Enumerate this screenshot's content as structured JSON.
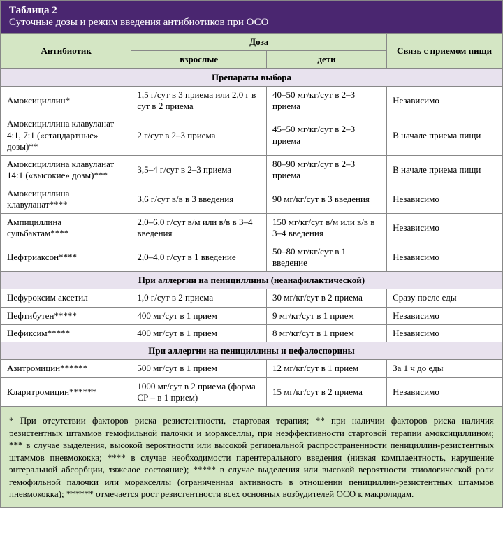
{
  "header": {
    "table_num": "Таблица 2",
    "title": "Суточные дозы и режим введения антибиотиков при ОСО"
  },
  "columns": {
    "antibiotic": "Антибиотик",
    "dose": "Доза",
    "adults": "взрослые",
    "children": "дети",
    "food": "Связь с приемом пищи"
  },
  "sections": [
    {
      "title": "Препараты выбора",
      "rows": [
        {
          "a": "Амоксициллин*",
          "b": "1,5 г/сут в 3 приема или 2,0 г в сут в 2 приема",
          "c": "40–50 мг/кг/сут в 2–3 приема",
          "d": "Независимо"
        },
        {
          "a": "Амоксициллина клавуланат 4:1, 7:1 («стандартные» дозы)**",
          "b": "2 г/сут в 2–3 приема",
          "c": "45–50 мг/кг/сут в 2–3 приема",
          "d": "В начале приема пищи"
        },
        {
          "a": "Амоксициллина клавуланат 14:1 («высокие» дозы)***",
          "b": "3,5–4 г/сут в 2–3 приема",
          "c": "80–90 мг/кг/сут в 2–3 приема",
          "d": "В начале приема пищи"
        },
        {
          "a": "Амоксициллина клавуланат****",
          "b": "3,6 г/сут в/в в 3 введения",
          "c": "90 мг/кг/сут в 3 введения",
          "d": "Независимо"
        },
        {
          "a": "Ампициллина сульбактам****",
          "b": "2,0–6,0 г/сут в/м или в/в в 3–4 введения",
          "c": "150 мг/кг/сут в/м или в/в в 3–4 введения",
          "d": "Независимо"
        },
        {
          "a": "Цефтриаксон****",
          "b": "2,0–4,0 г/сут в 1 введение",
          "c": "50–80 мг/кг/сут в 1 введение",
          "d": "Независимо"
        }
      ]
    },
    {
      "title": "При аллергии на пенициллины (неанафилактической)",
      "rows": [
        {
          "a": "Цефуроксим аксетил",
          "b": "1,0 г/сут в 2 приема",
          "c": "30 мг/кг/сут в 2 приема",
          "d": "Сразу после еды"
        },
        {
          "a": "Цефтибутен*****",
          "b": "400 мг/сут в 1 прием",
          "c": "9 мг/кг/сут в 1 прием",
          "d": "Независимо"
        },
        {
          "a": "Цефиксим*****",
          "b": "400 мг/сут в 1 прием",
          "c": "8 мг/кг/сут в 1 прием",
          "d": "Независимо"
        }
      ]
    },
    {
      "title": "При аллергии на пенициллины и цефалоспорины",
      "rows": [
        {
          "a": "Азитромицин******",
          "b": "500 мг/сут в 1 прием",
          "c": "12 мг/кг/сут в 1 прием",
          "d": "За 1 ч до еды"
        },
        {
          "a": "Кларитромицин******",
          "b": "1000 мг/сут в 2 приема (форма СР – в 1 прием)",
          "c": "15 мг/кг/сут в 2 приема",
          "d": "Независимо"
        }
      ]
    }
  ],
  "footnotes": "* При отсутствии факторов риска резистентности, стартовая терапия; ** при наличии факторов риска наличия резистентных штаммов гемофильной палочки и моракселлы, при неэффективности стартовой терапии амоксициллином; *** в случае выделения, высокой вероятности или высокой региональной распространенности пенициллин-резистентных штаммов пневмококка; **** в случае необходимости парентерального введения (низкая комплаентность, нарушение энтеральной абсорбции, тяжелое состояние); ***** в случае выделения или высокой вероятности этиологической роли гемофильной палочки или моракселлы (ограниченная активность в отношении пенициллин-резистентных штаммов пневмококка); ****** отмечается рост резистентности всех основных возбудителей ОСО к макролидам."
}
